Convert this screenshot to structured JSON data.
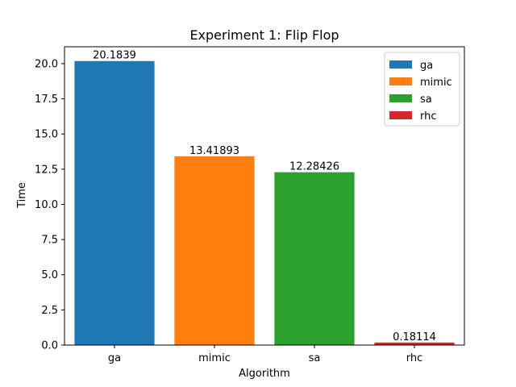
{
  "chart_data": {
    "type": "bar",
    "title": "Experiment 1: Flip Flop",
    "xlabel": "Algorithm",
    "ylabel": "Time",
    "categories": [
      "ga",
      "mimic",
      "sa",
      "rhc"
    ],
    "values": [
      20.1839,
      13.41893,
      12.28426,
      0.18114
    ],
    "data_labels": [
      "20.1839",
      "13.41893",
      "12.28426",
      "0.18114"
    ],
    "colors": [
      "#1f77b4",
      "#ff7f0e",
      "#2ca02c",
      "#d62728"
    ],
    "ylim": [
      0,
      21.2
    ],
    "yticks": [
      0.0,
      2.5,
      5.0,
      7.5,
      10.0,
      12.5,
      15.0,
      17.5,
      20.0
    ],
    "ytick_labels": [
      "0.0",
      "2.5",
      "5.0",
      "7.5",
      "10.0",
      "12.5",
      "15.0",
      "17.5",
      "20.0"
    ],
    "grid": false,
    "legend": {
      "placement": "top-right",
      "entries": [
        "ga",
        "mimic",
        "sa",
        "rhc"
      ]
    }
  }
}
